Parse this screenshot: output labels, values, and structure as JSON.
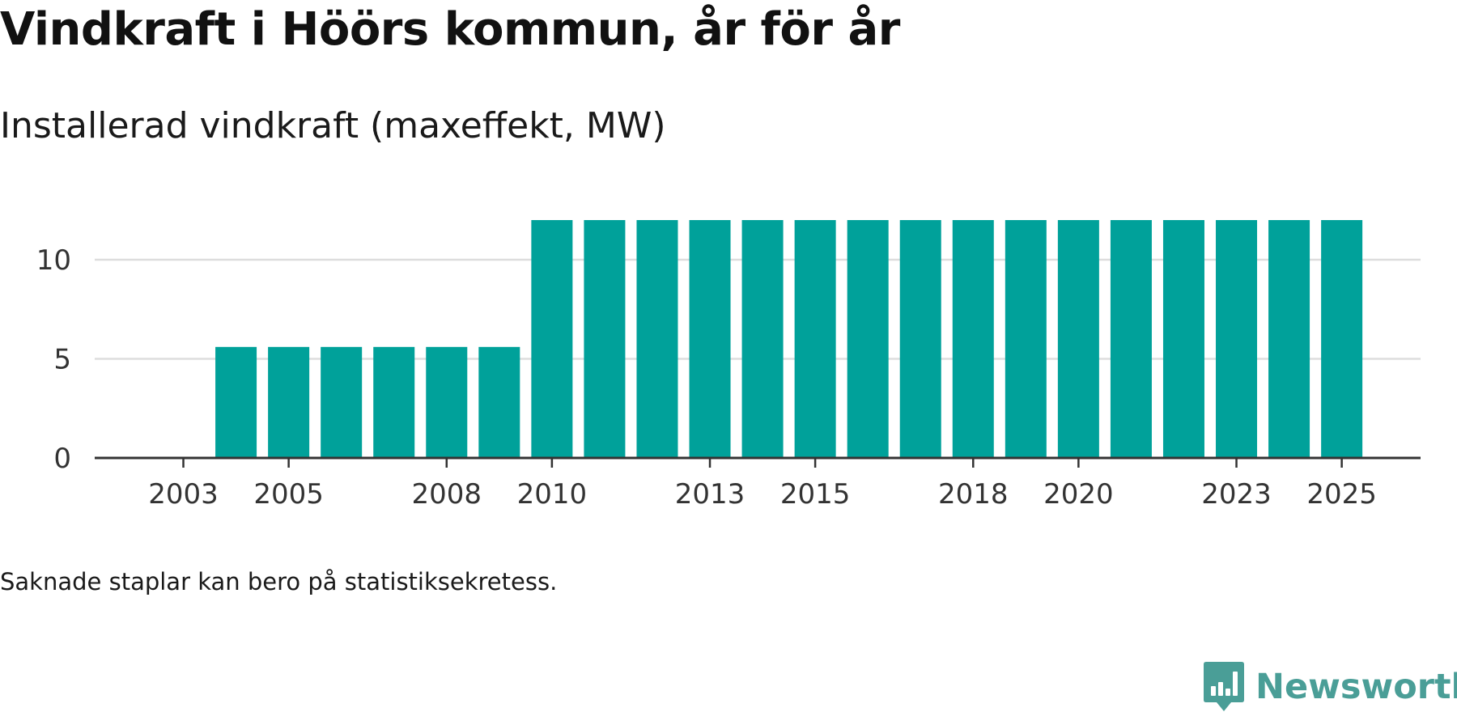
{
  "header": {
    "title": "Vindkraft i Höörs kommun, år för år",
    "subtitle": "Installerad vindkraft (maxeffekt, MW)"
  },
  "footer": {
    "note": "Saknade staplar kan bero på statistiksekretess.",
    "brand": "Newsworthy"
  },
  "colors": {
    "bar": "#00a19a",
    "grid": "#dddddd",
    "axis": "#333333",
    "tick_text": "#333333",
    "brand": "#4a9e97"
  },
  "icons": {
    "brand_logo": "newsworthy-logo-icon"
  },
  "chart_data": {
    "type": "bar",
    "title": "Vindkraft i Höörs kommun, år för år",
    "subtitle": "Installerad vindkraft (maxeffekt, MW)",
    "xlabel": "",
    "ylabel": "",
    "categories": [
      2003,
      2004,
      2005,
      2006,
      2007,
      2008,
      2009,
      2010,
      2011,
      2012,
      2013,
      2014,
      2015,
      2016,
      2017,
      2018,
      2019,
      2020,
      2021,
      2022,
      2023,
      2024,
      2025
    ],
    "values": [
      null,
      5.6,
      5.6,
      5.6,
      5.6,
      5.6,
      5.6,
      12,
      12,
      12,
      12,
      12,
      12,
      12,
      12,
      12,
      12,
      12,
      12,
      12,
      12,
      12,
      12
    ],
    "x_tick_labels": [
      "2003",
      "2005",
      "2008",
      "2010",
      "2013",
      "2015",
      "2018",
      "2020",
      "2023",
      "2025"
    ],
    "y_ticks": [
      0,
      5,
      10
    ],
    "ylim": [
      0,
      12
    ],
    "grid": true,
    "legend": "none"
  }
}
